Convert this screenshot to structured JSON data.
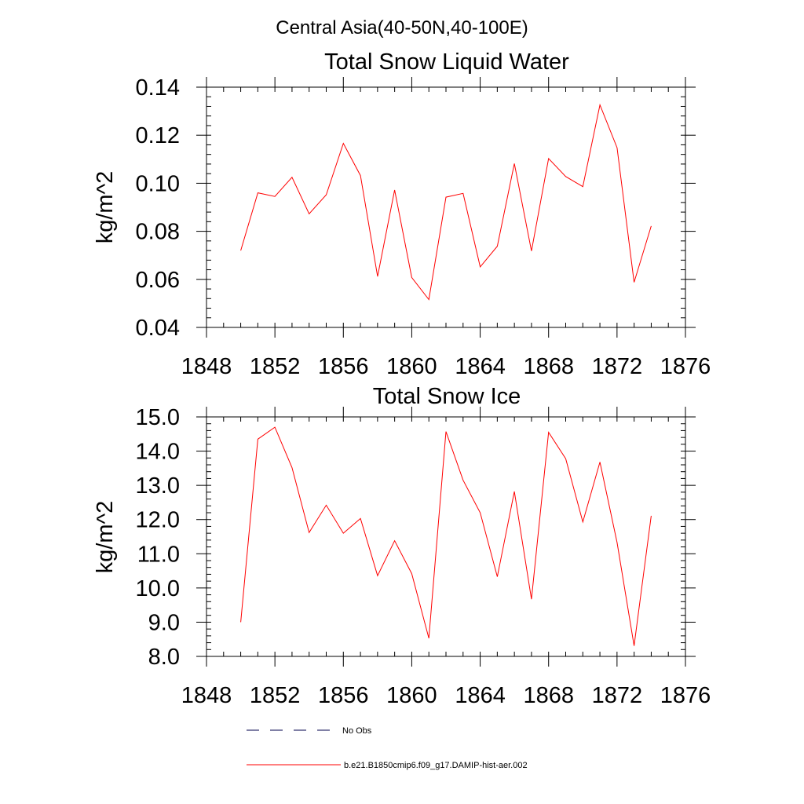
{
  "figure_title": "Central Asia(40-50N,40-100E)",
  "legend": [
    {
      "label": "No Obs",
      "color": "#00004d",
      "style": "dashed"
    },
    {
      "label": "b.e21.B1850cmip6.f09_g17.DAMIP-hist-aer.002",
      "color": "#ff0000",
      "style": "solid"
    }
  ],
  "chart_data": [
    {
      "type": "line",
      "title": "Total Snow Liquid Water",
      "xlabel": "",
      "ylabel": "kg/m^2",
      "xlim": [
        1848,
        1876
      ],
      "ylim": [
        0.04,
        0.14
      ],
      "x_ticks": [
        1848,
        1852,
        1856,
        1860,
        1864,
        1868,
        1872,
        1876
      ],
      "x_minor_step": 1,
      "y_ticks": [
        "0.04",
        "0.06",
        "0.08",
        "0.10",
        "0.12",
        "0.14"
      ],
      "y_minor_step": 0.004,
      "grid": false,
      "series": [
        {
          "name": "b.e21.B1850cmip6.f09_g17.DAMIP-hist-aer.002",
          "color": "#ff0000",
          "x": [
            1850,
            1851,
            1852,
            1853,
            1854,
            1855,
            1856,
            1857,
            1858,
            1859,
            1860,
            1861,
            1862,
            1863,
            1864,
            1865,
            1866,
            1867,
            1868,
            1869,
            1870,
            1871,
            1872,
            1873,
            1874
          ],
          "y": [
            0.072,
            0.096,
            0.0945,
            0.1025,
            0.0873,
            0.0952,
            0.1166,
            0.1032,
            0.0612,
            0.0972,
            0.0608,
            0.0516,
            0.0942,
            0.0958,
            0.0652,
            0.0738,
            0.1082,
            0.0718,
            0.1103,
            0.1028,
            0.0986,
            0.1326,
            0.1148,
            0.0588,
            0.0822
          ]
        }
      ]
    },
    {
      "type": "line",
      "title": "Total Snow Ice",
      "xlabel": "",
      "ylabel": "kg/m^2",
      "xlim": [
        1848,
        1876
      ],
      "ylim": [
        8.0,
        15.0
      ],
      "x_ticks": [
        1848,
        1852,
        1856,
        1860,
        1864,
        1868,
        1872,
        1876
      ],
      "x_minor_step": 1,
      "y_ticks": [
        "8.0",
        "9.0",
        "10.0",
        "11.0",
        "12.0",
        "13.0",
        "14.0",
        "15.0"
      ],
      "y_minor_step": 0.2,
      "grid": false,
      "series": [
        {
          "name": "b.e21.B1850cmip6.f09_g17.DAMIP-hist-aer.002",
          "color": "#ff0000",
          "x": [
            1850,
            1851,
            1852,
            1853,
            1854,
            1855,
            1856,
            1857,
            1858,
            1859,
            1860,
            1861,
            1862,
            1863,
            1864,
            1865,
            1866,
            1867,
            1868,
            1869,
            1870,
            1871,
            1872,
            1873,
            1874
          ],
          "y": [
            9.0,
            14.35,
            14.7,
            13.52,
            11.62,
            12.42,
            11.6,
            12.03,
            10.36,
            11.38,
            10.42,
            8.53,
            14.57,
            13.15,
            12.2,
            10.33,
            12.82,
            9.67,
            14.55,
            13.78,
            11.93,
            13.68,
            11.33,
            8.31,
            12.11
          ]
        }
      ]
    }
  ]
}
